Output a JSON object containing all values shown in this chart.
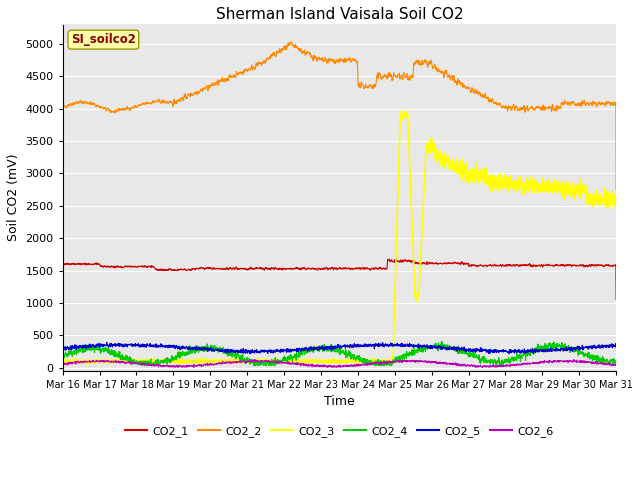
{
  "title": "Sherman Island Vaisala Soil CO2",
  "ylabel": "Soil CO2 (mV)",
  "xlabel": "Time",
  "watermark": "SI_soilco2",
  "fig_bg_color": "#ffffff",
  "plot_bg_color": "#e8e8e8",
  "x_start": 16,
  "x_end": 31,
  "x_ticks": [
    16,
    17,
    18,
    19,
    20,
    21,
    22,
    23,
    24,
    25,
    26,
    27,
    28,
    29,
    30,
    31
  ],
  "x_tick_labels": [
    "Mar 16",
    "Mar 17",
    "Mar 18",
    "Mar 19",
    "Mar 20",
    "Mar 21",
    "Mar 22",
    "Mar 23",
    "Mar 24",
    "Mar 25",
    "Mar 26",
    "Mar 27",
    "Mar 28",
    "Mar 29",
    "Mar 30",
    "Mar 31"
  ],
  "ylim": [
    -50,
    5300
  ],
  "y_ticks": [
    0,
    500,
    1000,
    1500,
    2000,
    2500,
    3000,
    3500,
    4000,
    4500,
    5000
  ],
  "series": {
    "CO2_1": {
      "color": "#cc0000",
      "lw": 0.8
    },
    "CO2_2": {
      "color": "#ff8800",
      "lw": 0.8
    },
    "CO2_3": {
      "color": "#ffff00",
      "lw": 1.2
    },
    "CO2_4": {
      "color": "#00cc00",
      "lw": 0.8
    },
    "CO2_5": {
      "color": "#0000cc",
      "lw": 0.8
    },
    "CO2_6": {
      "color": "#bb00bb",
      "lw": 0.8
    }
  },
  "legend_entries": [
    "CO2_1",
    "CO2_2",
    "CO2_3",
    "CO2_4",
    "CO2_5",
    "CO2_6"
  ],
  "legend_colors": [
    "#cc0000",
    "#ff8800",
    "#ffff00",
    "#00cc00",
    "#0000cc",
    "#bb00bb"
  ],
  "grid_color": "#ffffff",
  "title_fontsize": 11,
  "axis_fontsize": 9,
  "tick_fontsize": 7
}
